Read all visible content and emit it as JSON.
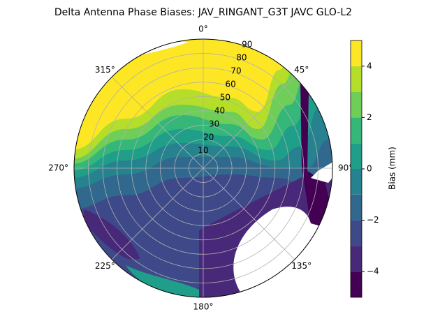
{
  "chart_data": {
    "type": "polar_contour",
    "title": "Delta Antenna Phase Biases: JAV_RINGANT_G3T JAVC GLO-L2",
    "theta_direction": "clockwise",
    "theta_zero": "N",
    "thetaticks": [
      {
        "value": 0,
        "label": "0°"
      },
      {
        "value": 45,
        "label": "45°"
      },
      {
        "value": 90,
        "label": "90°"
      },
      {
        "value": 135,
        "label": "135°"
      },
      {
        "value": 180,
        "label": "180°"
      },
      {
        "value": 225,
        "label": "225°"
      },
      {
        "value": 270,
        "label": "270°"
      },
      {
        "value": 315,
        "label": "315°"
      }
    ],
    "rlim": [
      0,
      90
    ],
    "rticks": [
      10,
      20,
      30,
      40,
      50,
      60,
      70,
      80,
      90
    ],
    "grid": true,
    "levels": [
      -5,
      -4,
      -3,
      -2,
      -1,
      0,
      1,
      2,
      3,
      4,
      5
    ],
    "colors": [
      "#440154",
      "#482878",
      "#3e4989",
      "#31688e",
      "#26828e",
      "#1f9e89",
      "#35b779",
      "#6ece58",
      "#b5de2b",
      "#fde725"
    ],
    "colorbar_label": "Bias (mm)",
    "colorbar_ticks": [
      {
        "value": -4,
        "label": "−4"
      },
      {
        "value": -2,
        "label": "−2"
      },
      0,
      2,
      4
    ]
  }
}
